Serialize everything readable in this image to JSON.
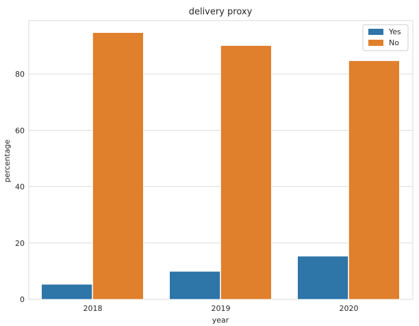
{
  "chart_data": {
    "type": "bar",
    "title": "delivery proxy",
    "xlabel": "year",
    "ylabel": "percentage",
    "categories": [
      "2018",
      "2019",
      "2020"
    ],
    "series": [
      {
        "name": "Yes",
        "values": [
          5.3,
          9.9,
          15.3
        ],
        "color": "#2e75a8"
      },
      {
        "name": "No",
        "values": [
          94.7,
          90.1,
          84.7
        ],
        "color": "#e07f2c"
      }
    ],
    "ylim": [
      0,
      99
    ],
    "yticks": [
      0,
      20,
      40,
      60,
      80
    ],
    "grid": true,
    "legend": "top-right",
    "colors": {
      "plot_bg": "#eaeaf2",
      "grid": "#ffffff",
      "text": "#262626"
    }
  }
}
